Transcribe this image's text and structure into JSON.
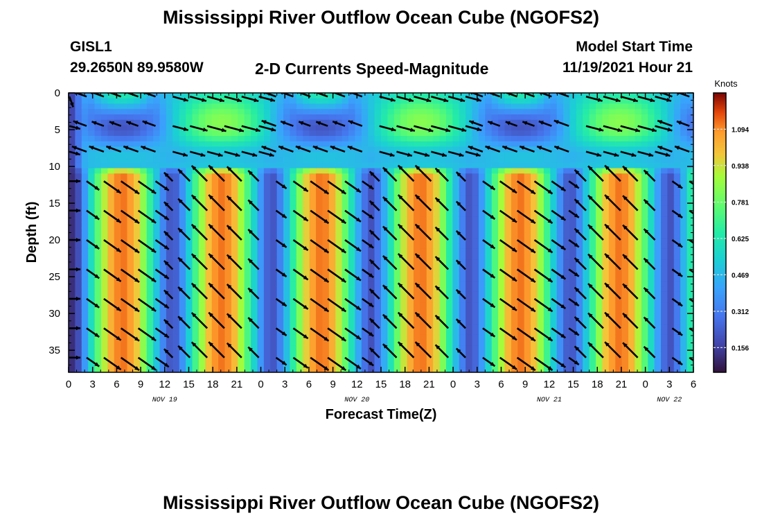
{
  "header": {
    "title": "Mississippi River Outflow Ocean Cube (NGOFS2)",
    "station": "GISL1",
    "coords": "29.2650N  89.9580W",
    "subtitle": "2-D Currents Speed-Magnitude",
    "model_start_label": "Model Start Time",
    "model_start_value": "11/19/2021 Hour 21",
    "footer_title": "Mississippi River Outflow Ocean Cube (NGOFS2)"
  },
  "chart_data": {
    "type": "heatmap",
    "xlabel": "Forecast Time(Z)",
    "ylabel": "Depth (ft)",
    "x_range_hours": [
      0,
      78
    ],
    "ylim": [
      0,
      38
    ],
    "x_ticks": [
      {
        "h": 0,
        "label": "0"
      },
      {
        "h": 3,
        "label": "3"
      },
      {
        "h": 6,
        "label": "6"
      },
      {
        "h": 9,
        "label": "9"
      },
      {
        "h": 12,
        "label": "12"
      },
      {
        "h": 15,
        "label": "15"
      },
      {
        "h": 18,
        "label": "18"
      },
      {
        "h": 21,
        "label": "21"
      },
      {
        "h": 24,
        "label": "0"
      },
      {
        "h": 27,
        "label": "3"
      },
      {
        "h": 30,
        "label": "6"
      },
      {
        "h": 33,
        "label": "9"
      },
      {
        "h": 36,
        "label": "12"
      },
      {
        "h": 39,
        "label": "15"
      },
      {
        "h": 42,
        "label": "18"
      },
      {
        "h": 45,
        "label": "21"
      },
      {
        "h": 48,
        "label": "0"
      },
      {
        "h": 51,
        "label": "3"
      },
      {
        "h": 54,
        "label": "6"
      },
      {
        "h": 57,
        "label": "9"
      },
      {
        "h": 60,
        "label": "12"
      },
      {
        "h": 63,
        "label": "15"
      },
      {
        "h": 66,
        "label": "18"
      },
      {
        "h": 69,
        "label": "21"
      },
      {
        "h": 72,
        "label": "0"
      },
      {
        "h": 75,
        "label": "3"
      },
      {
        "h": 78,
        "label": "6"
      }
    ],
    "date_labels": [
      {
        "h": 12,
        "label": "NOV 19"
      },
      {
        "h": 36,
        "label": "NOV 20"
      },
      {
        "h": 60,
        "label": "NOV 21"
      },
      {
        "h": 75,
        "label": "NOV 22"
      }
    ],
    "y_ticks": [
      0,
      5,
      10,
      15,
      20,
      25,
      30,
      35
    ],
    "colorbar": {
      "title": "Knots",
      "range": [
        0.05,
        1.25
      ],
      "ticks": [
        0.156,
        0.312,
        0.469,
        0.625,
        0.781,
        0.938,
        1.094
      ]
    },
    "grid": false,
    "vectors": true
  }
}
